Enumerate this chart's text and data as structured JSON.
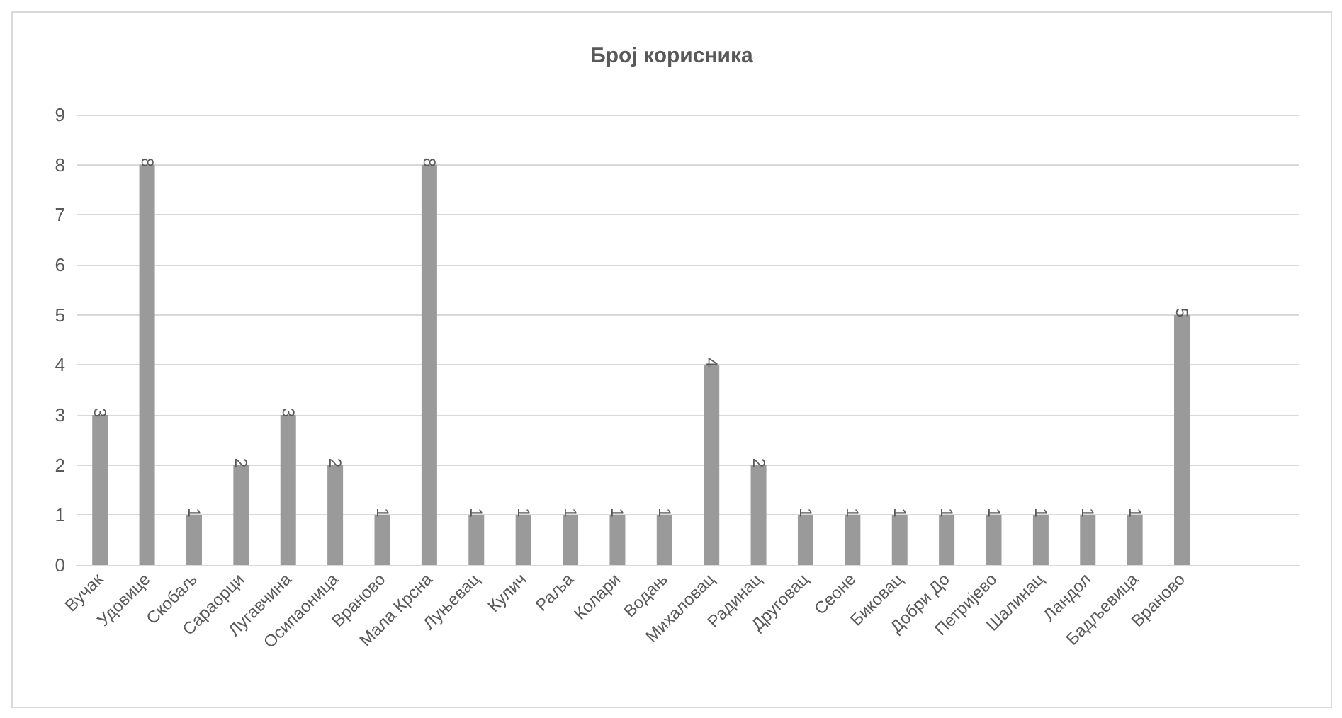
{
  "chart_data": {
    "type": "bar",
    "title": "Број корисника",
    "categories": [
      "Вучак",
      "Удовице",
      "Скобаљ",
      "Сараорци",
      "Лугавчина",
      "Осипаоница",
      "Враново",
      "Мала Крсна",
      "Луњевац",
      "Кулич",
      "Раља",
      "Колари",
      "Водањ",
      "Михаловац",
      "Радинац",
      "Друговац",
      "Сеоне",
      "Биковац",
      "Добри До",
      "Петријево",
      "Шалинац",
      "Ландол",
      "Бадљевица",
      "Враново",
      null,
      null
    ],
    "values": [
      3,
      8,
      1,
      2,
      3,
      2,
      1,
      8,
      1,
      1,
      1,
      1,
      1,
      4,
      2,
      1,
      1,
      1,
      1,
      1,
      1,
      1,
      1,
      5,
      null,
      null
    ],
    "color": "#9a9a9a",
    "ylim": [
      0,
      9
    ],
    "yticks": [
      0,
      1,
      2,
      3,
      4,
      5,
      6,
      7,
      8,
      9
    ],
    "grid": "y",
    "data_labels": true
  }
}
